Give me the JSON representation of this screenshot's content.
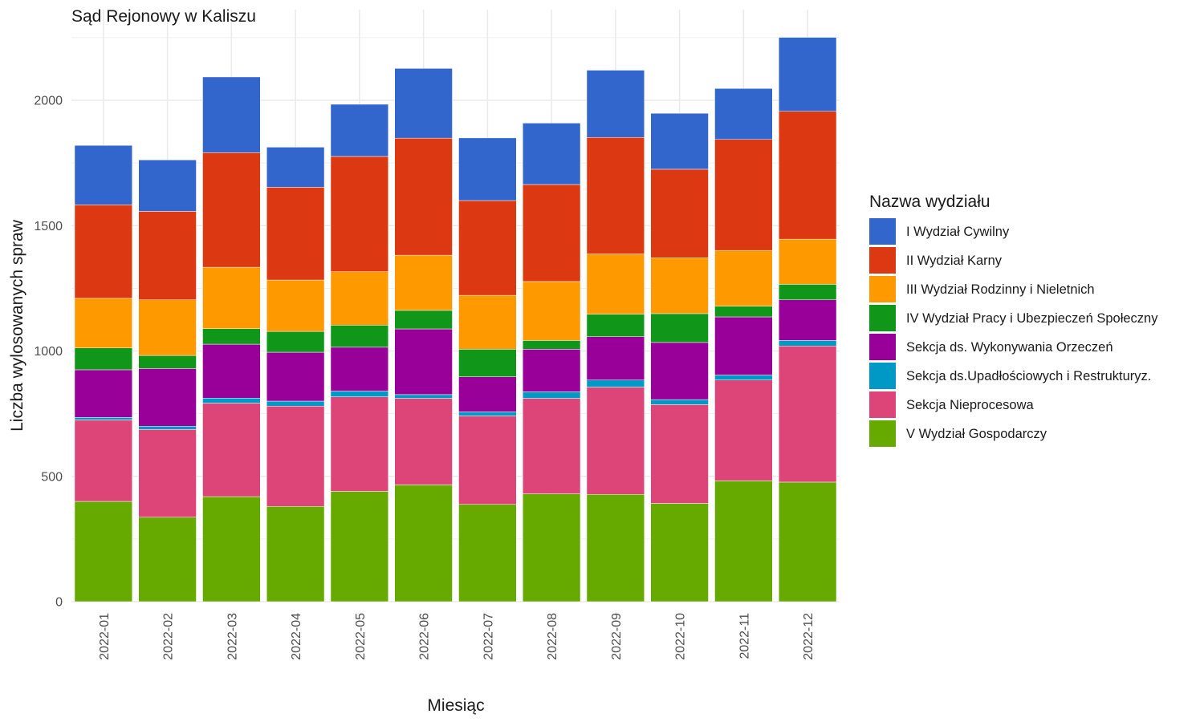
{
  "chart_data": {
    "type": "bar",
    "stacked": true,
    "title": "Sąd Rejonowy w Kaliszu",
    "xlabel": "Miesiąc",
    "ylabel": "Liczba wylosowanych spraw",
    "ylim": [
      0,
      2300
    ],
    "yticks": [
      0,
      500,
      1000,
      1500,
      2000
    ],
    "grid": true,
    "legend_title": "Nazwa wydziału",
    "legend_position": "right",
    "categories": [
      "2022-01",
      "2022-02",
      "2022-03",
      "2022-04",
      "2022-05",
      "2022-06",
      "2022-07",
      "2022-08",
      "2022-09",
      "2022-10",
      "2022-11",
      "2022-12"
    ],
    "series": [
      {
        "name": "V Wydział Gospodarczy",
        "color": "#66AA00",
        "values": [
          400,
          337,
          419,
          380,
          440,
          466,
          388,
          430,
          428,
          392,
          482,
          477
        ]
      },
      {
        "name": "Sekcja Nieprocesowa",
        "color": "#DD4477",
        "values": [
          325,
          350,
          373,
          400,
          377,
          345,
          353,
          381,
          428,
          394,
          402,
          543
        ]
      },
      {
        "name": "Sekcja ds.Upadłościowych i Restrukturyz.",
        "color": "#0099C6",
        "values": [
          10,
          13,
          20,
          20,
          23,
          15,
          16,
          26,
          28,
          20,
          20,
          22
        ]
      },
      {
        "name": "Sekcja ds. Wykonywania Orzeczeń",
        "color": "#990099",
        "values": [
          190,
          230,
          215,
          195,
          175,
          262,
          140,
          170,
          173,
          228,
          232,
          162
        ]
      },
      {
        "name": "IV Wydział Pracy i Ubezpieczeń Społeczny",
        "color": "#109618",
        "values": [
          87,
          52,
          62,
          83,
          88,
          74,
          110,
          35,
          90,
          115,
          43,
          62
        ]
      },
      {
        "name": "III Wydział Rodzinny i Nieletnich",
        "color": "#FF9900",
        "values": [
          198,
          222,
          245,
          205,
          213,
          220,
          215,
          235,
          240,
          223,
          222,
          180
        ]
      },
      {
        "name": "II Wydział Karny",
        "color": "#DC3912",
        "values": [
          373,
          353,
          457,
          370,
          460,
          467,
          378,
          387,
          465,
          353,
          443,
          510
        ]
      },
      {
        "name": "I Wydział Cywilny",
        "color": "#3366CC",
        "values": [
          237,
          205,
          302,
          160,
          208,
          278,
          250,
          245,
          268,
          223,
          203,
          295
        ]
      }
    ],
    "legend_order": [
      "I Wydział Cywilny",
      "II Wydział Karny",
      "III Wydział Rodzinny i Nieletnich",
      "IV Wydział Pracy i Ubezpieczeń Społeczny",
      "Sekcja ds. Wykonywania Orzeczeń",
      "Sekcja ds.Upadłościowych i Restrukturyz.",
      "Sekcja Nieprocesowa",
      "V Wydział Gospodarczy"
    ]
  }
}
